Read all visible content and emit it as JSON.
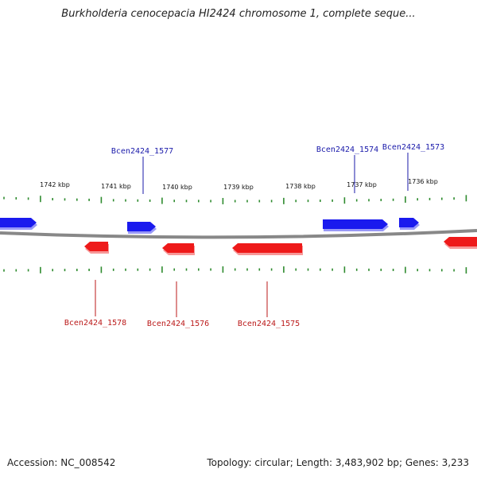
{
  "title": "Burkholderia cenocepacia HI2424 chromosome 1, complete seque...",
  "footer": {
    "accession": "Accession: NC_008542",
    "topology": "Topology: circular; Length: 3,483,902 bp; Genes: 3,233"
  },
  "colors": {
    "forward": "#1a1aee",
    "reverse": "#ee1a1a",
    "ticks": "#2e8b2e",
    "backbone": "#888888",
    "label_fwd": "#1a1aaa",
    "label_rev": "#bb1a1a"
  },
  "scale": {
    "unit": "kbp",
    "ticks": [
      "1742 kbp",
      "1741 kbp",
      "1740 kbp",
      "1739 kbp",
      "1738 kbp",
      "1737 kbp",
      "1736 kbp"
    ]
  },
  "genes": {
    "forward": [
      {
        "label": "",
        "strand": "+"
      },
      {
        "label": "Bcen2424_1577",
        "strand": "+"
      },
      {
        "label": "Bcen2424_1574",
        "strand": "+"
      },
      {
        "label": "Bcen2424_1573",
        "strand": "+"
      }
    ],
    "reverse": [
      {
        "label": "Bcen2424_1578",
        "strand": "-"
      },
      {
        "label": "Bcen2424_1576",
        "strand": "-"
      },
      {
        "label": "Bcen2424_1575",
        "strand": "-"
      },
      {
        "label": "",
        "strand": "-"
      }
    ]
  }
}
